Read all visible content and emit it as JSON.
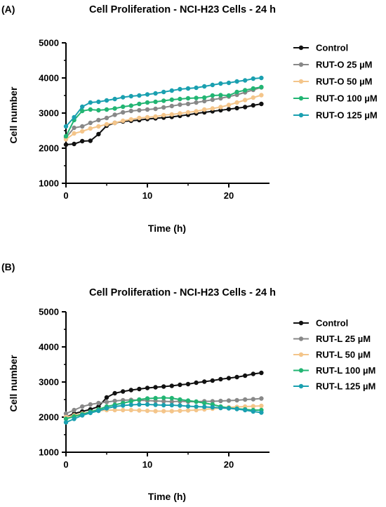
{
  "chart_data": [
    {
      "type": "line",
      "panel_label": "(A)",
      "title": "Cell Proliferation - NCI-H23 Cells - 24 h",
      "xlabel": "Time (h)",
      "ylabel": "Cell number",
      "xlim": [
        0,
        25
      ],
      "ylim": [
        1000,
        5000
      ],
      "xticks": [
        "0",
        "10",
        "20"
      ],
      "yticks": [
        "1000",
        "2000",
        "3000",
        "4000",
        "5000"
      ],
      "grid": false,
      "legend_position": "right",
      "x": [
        0,
        1,
        2,
        3,
        4,
        5,
        6,
        7,
        8,
        9,
        10,
        11,
        12,
        13,
        14,
        15,
        16,
        17,
        18,
        19,
        20,
        21,
        22,
        23,
        24
      ],
      "series": [
        {
          "name": "Control",
          "color": "#111111",
          "values": [
            2100,
            2120,
            2200,
            2210,
            2400,
            2640,
            2720,
            2760,
            2780,
            2800,
            2830,
            2850,
            2870,
            2890,
            2920,
            2950,
            2990,
            3020,
            3050,
            3080,
            3110,
            3140,
            3170,
            3220,
            3260
          ]
        },
        {
          "name": "RUT-O 25 µM",
          "color": "#888888",
          "values": [
            2300,
            2580,
            2620,
            2720,
            2800,
            2860,
            2950,
            3020,
            3060,
            3080,
            3100,
            3120,
            3160,
            3200,
            3240,
            3260,
            3300,
            3340,
            3380,
            3420,
            3470,
            3520,
            3590,
            3660,
            3730
          ]
        },
        {
          "name": "RUT-O 50 µM",
          "color": "#f4c58a",
          "values": [
            2250,
            2420,
            2480,
            2560,
            2620,
            2680,
            2720,
            2780,
            2820,
            2860,
            2880,
            2900,
            2940,
            2960,
            2990,
            3020,
            3050,
            3100,
            3130,
            3170,
            3230,
            3300,
            3370,
            3440,
            3510
          ]
        },
        {
          "name": "RUT-O 100 µM",
          "color": "#22b573",
          "values": [
            2340,
            2800,
            3060,
            3100,
            3080,
            3100,
            3130,
            3180,
            3210,
            3260,
            3300,
            3320,
            3350,
            3380,
            3400,
            3420,
            3430,
            3440,
            3500,
            3510,
            3500,
            3600,
            3650,
            3700,
            3740
          ]
        },
        {
          "name": "RUT-O 125 µM",
          "color": "#1aa0b0",
          "values": [
            2620,
            2880,
            3180,
            3300,
            3320,
            3360,
            3400,
            3450,
            3480,
            3500,
            3530,
            3560,
            3600,
            3640,
            3680,
            3700,
            3720,
            3760,
            3800,
            3840,
            3860,
            3900,
            3930,
            3980,
            4000
          ]
        }
      ]
    },
    {
      "type": "line",
      "panel_label": "(B)",
      "title": "Cell Proliferation - NCI-H23 Cells - 24 h",
      "xlabel": "Time (h)",
      "ylabel": "Cell number",
      "xlim": [
        0,
        25
      ],
      "ylim": [
        1000,
        5000
      ],
      "xticks": [
        "0",
        "10",
        "20"
      ],
      "yticks": [
        "1000",
        "2000",
        "3000",
        "4000",
        "5000"
      ],
      "grid": false,
      "legend_position": "right",
      "x": [
        0,
        1,
        2,
        3,
        4,
        5,
        6,
        7,
        8,
        9,
        10,
        11,
        12,
        13,
        14,
        15,
        16,
        17,
        18,
        19,
        20,
        21,
        22,
        23,
        24
      ],
      "series": [
        {
          "name": "Control",
          "color": "#111111",
          "values": [
            2000,
            2100,
            2160,
            2220,
            2300,
            2560,
            2680,
            2730,
            2770,
            2800,
            2830,
            2850,
            2870,
            2890,
            2920,
            2940,
            2980,
            3010,
            3040,
            3080,
            3110,
            3140,
            3180,
            3230,
            3260
          ]
        },
        {
          "name": "RUT-L 25 µM",
          "color": "#888888",
          "values": [
            2100,
            2200,
            2300,
            2360,
            2400,
            2430,
            2460,
            2480,
            2490,
            2480,
            2470,
            2460,
            2450,
            2440,
            2450,
            2440,
            2440,
            2450,
            2450,
            2460,
            2470,
            2480,
            2500,
            2510,
            2530
          ]
        },
        {
          "name": "RUT-L 50 µM",
          "color": "#f4c58a",
          "values": [
            2000,
            2050,
            2100,
            2150,
            2180,
            2200,
            2200,
            2200,
            2200,
            2190,
            2180,
            2170,
            2170,
            2170,
            2180,
            2190,
            2200,
            2220,
            2240,
            2260,
            2280,
            2290,
            2300,
            2310,
            2320
          ]
        },
        {
          "name": "RUT-L 100 µM",
          "color": "#22b573",
          "values": [
            1950,
            2020,
            2080,
            2150,
            2220,
            2300,
            2350,
            2400,
            2450,
            2500,
            2530,
            2540,
            2550,
            2540,
            2500,
            2470,
            2440,
            2400,
            2360,
            2300,
            2260,
            2240,
            2220,
            2200,
            2200
          ]
        },
        {
          "name": "RUT-L 125 µM",
          "color": "#1aa0b0",
          "values": [
            1850,
            1950,
            2050,
            2120,
            2180,
            2250,
            2300,
            2330,
            2350,
            2360,
            2360,
            2350,
            2340,
            2340,
            2330,
            2310,
            2300,
            2290,
            2280,
            2260,
            2250,
            2230,
            2200,
            2160,
            2130
          ]
        }
      ]
    }
  ]
}
